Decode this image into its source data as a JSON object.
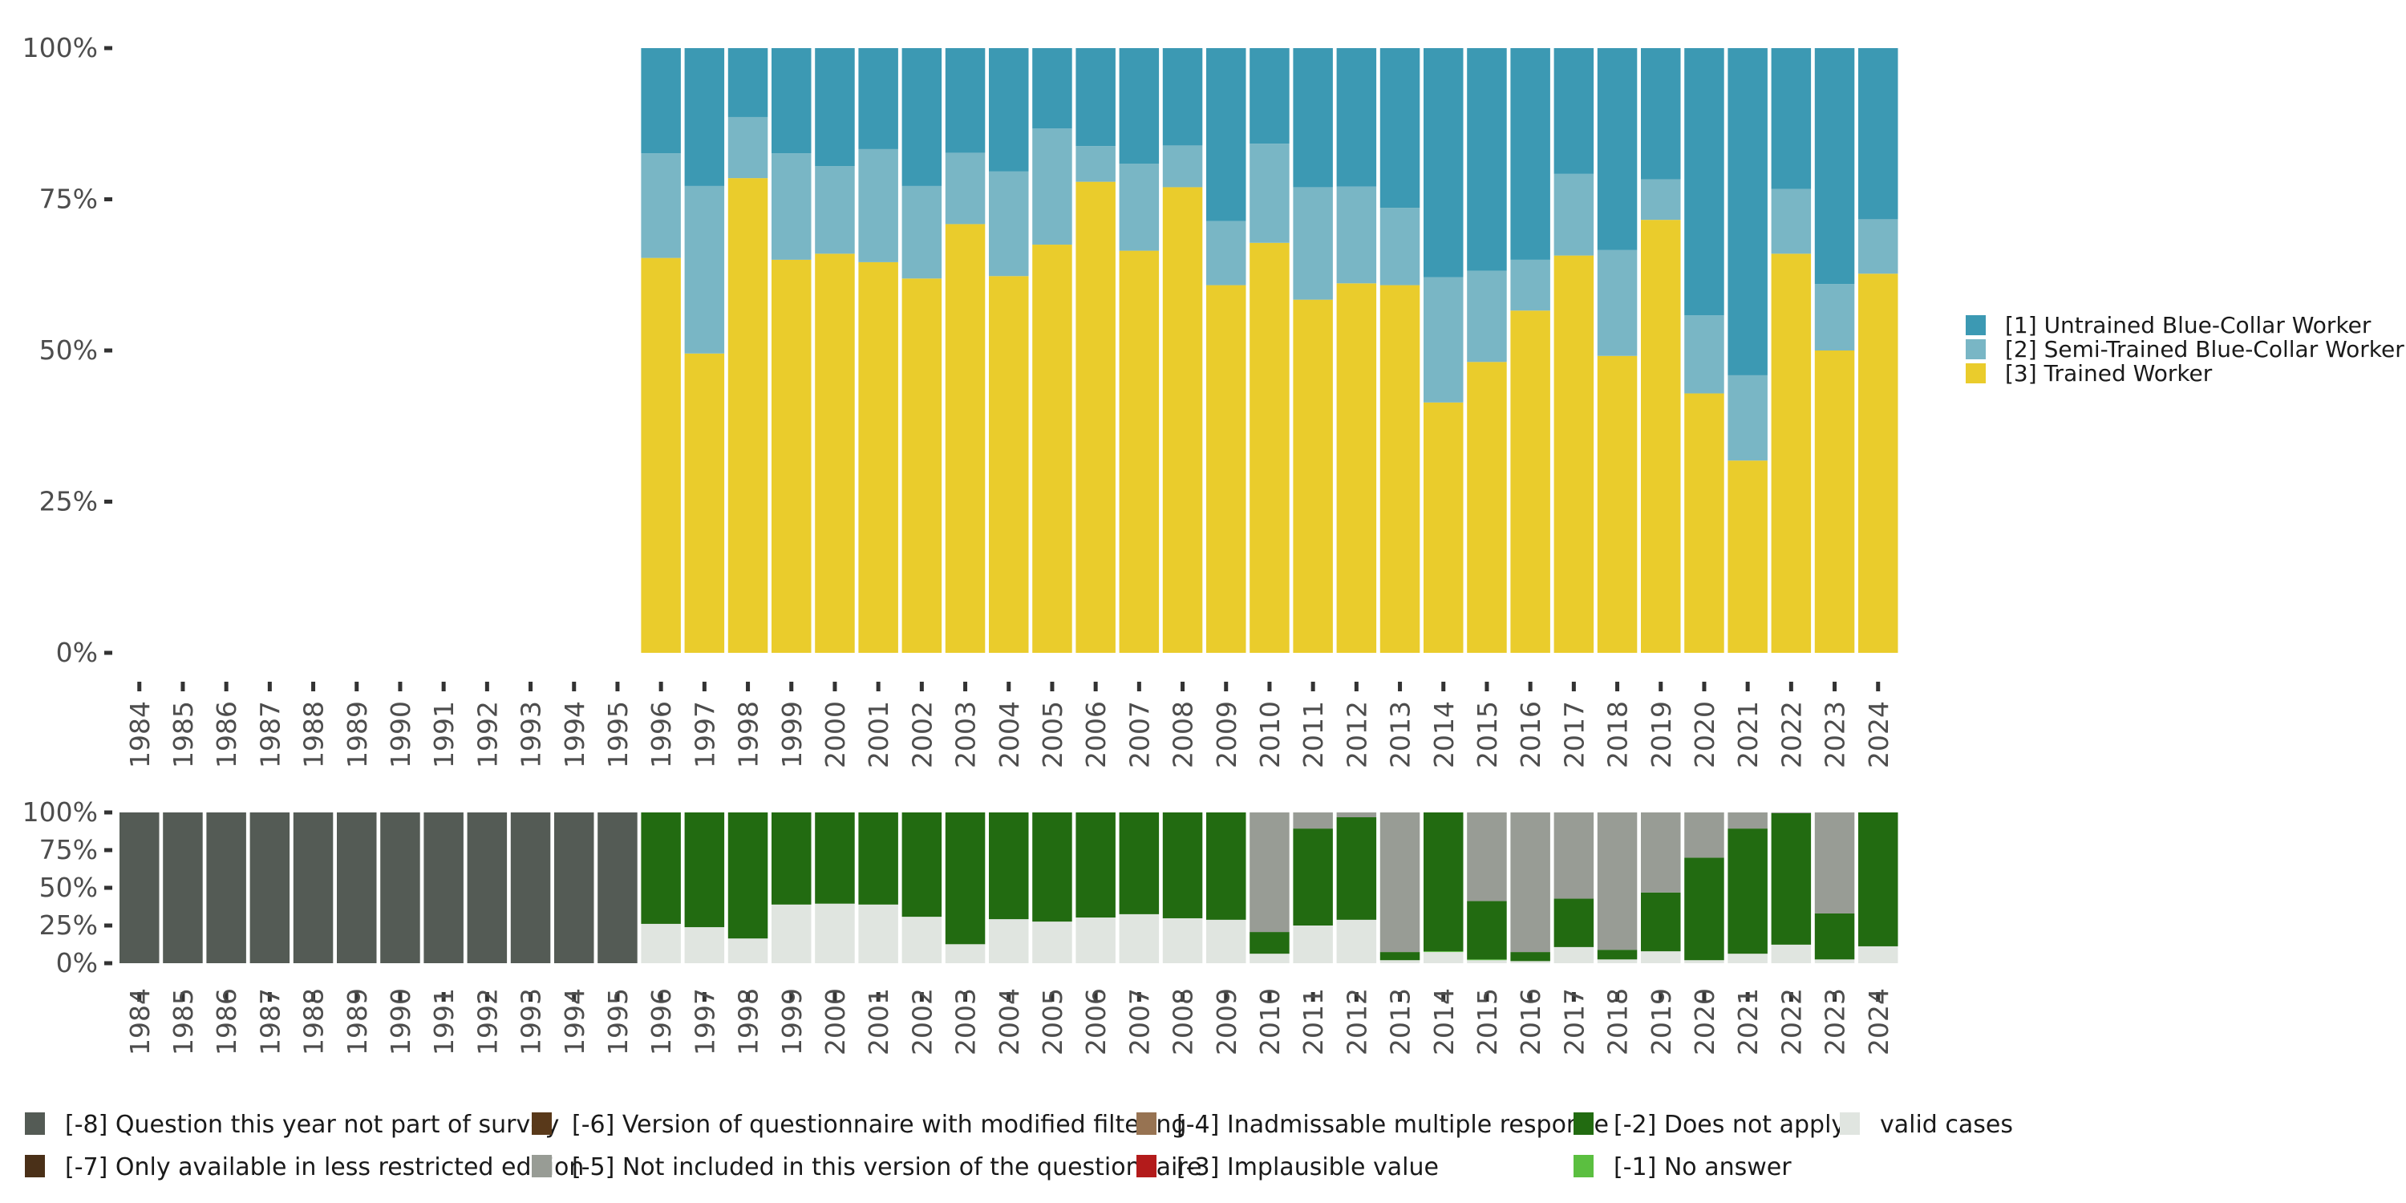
{
  "chart_data": [
    {
      "type": "bar",
      "stacked": true,
      "normalized": true,
      "title": "",
      "xlabel": "",
      "ylabel": "",
      "ylim": [
        0,
        100
      ],
      "y_ticks": [
        "0%",
        "25%",
        "50%",
        "75%",
        "100%"
      ],
      "categories": [
        "1984",
        "1985",
        "1986",
        "1987",
        "1988",
        "1989",
        "1990",
        "1991",
        "1992",
        "1993",
        "1994",
        "1995",
        "1996",
        "1997",
        "1998",
        "1999",
        "2000",
        "2001",
        "2002",
        "2003",
        "2004",
        "2005",
        "2006",
        "2007",
        "2008",
        "2009",
        "2010",
        "2011",
        "2012",
        "2013",
        "2014",
        "2015",
        "2016",
        "2017",
        "2018",
        "2019",
        "2020",
        "2021",
        "2022",
        "2023",
        "2024"
      ],
      "legend_position": "right",
      "series": [
        {
          "name": "[3] Trained Worker",
          "color": "#EACC2C",
          "values": [
            null,
            null,
            null,
            null,
            null,
            null,
            null,
            null,
            null,
            null,
            null,
            null,
            65.3,
            49.5,
            78.5,
            65.0,
            66.0,
            64.6,
            61.9,
            70.9,
            62.3,
            67.5,
            77.9,
            66.5,
            77.0,
            60.8,
            67.8,
            58.4,
            61.1,
            60.8,
            41.4,
            48.1,
            56.6,
            65.7,
            49.1,
            71.6,
            42.9,
            31.8,
            66.0,
            50.0,
            62.7
          ]
        },
        {
          "name": "[2] Semi-Trained Blue-Collar Worker",
          "color": "#79B6C5",
          "values": [
            null,
            null,
            null,
            null,
            null,
            null,
            null,
            null,
            null,
            null,
            null,
            null,
            17.3,
            27.7,
            10.1,
            17.6,
            14.5,
            18.7,
            15.3,
            11.8,
            17.3,
            19.2,
            5.9,
            14.4,
            6.9,
            10.6,
            16.4,
            18.6,
            16.0,
            12.8,
            20.7,
            15.1,
            8.4,
            13.5,
            17.5,
            6.7,
            12.9,
            14.1,
            10.7,
            11.0,
            9.0
          ]
        },
        {
          "name": "[1] Untrained Blue-Collar Worker",
          "color": "#3C99B3",
          "values": [
            null,
            null,
            null,
            null,
            null,
            null,
            null,
            null,
            null,
            null,
            null,
            null,
            17.4,
            22.8,
            11.4,
            17.4,
            19.5,
            16.7,
            22.8,
            17.3,
            20.4,
            13.3,
            16.2,
            19.1,
            16.1,
            28.6,
            15.8,
            23.0,
            22.9,
            26.4,
            37.9,
            36.8,
            35.0,
            20.8,
            33.4,
            21.7,
            44.2,
            54.1,
            23.3,
            39.0,
            28.3
          ]
        }
      ]
    },
    {
      "type": "bar",
      "stacked": true,
      "normalized": true,
      "title": "",
      "xlabel": "",
      "ylabel": "",
      "ylim": [
        0,
        100
      ],
      "y_ticks": [
        "0%",
        "25%",
        "50%",
        "75%",
        "100%"
      ],
      "categories": [
        "1984",
        "1985",
        "1986",
        "1987",
        "1988",
        "1989",
        "1990",
        "1991",
        "1992",
        "1993",
        "1994",
        "1995",
        "1996",
        "1997",
        "1998",
        "1999",
        "2000",
        "2001",
        "2002",
        "2003",
        "2004",
        "2005",
        "2006",
        "2007",
        "2008",
        "2009",
        "2010",
        "2011",
        "2012",
        "2013",
        "2014",
        "2015",
        "2016",
        "2017",
        "2018",
        "2019",
        "2020",
        "2021",
        "2022",
        "2023",
        "2024"
      ],
      "legend_position": "bottom",
      "series": [
        {
          "name": "valid cases",
          "color": "#E0E5E0",
          "values": [
            0,
            0,
            0,
            0,
            0,
            0,
            0,
            0,
            0,
            0,
            0,
            0,
            26.1,
            23.9,
            16.4,
            38.9,
            39.5,
            38.9,
            30.8,
            12.6,
            29.2,
            27.6,
            30.3,
            32.5,
            29.8,
            28.8,
            6.3,
            25.0,
            28.8,
            2.0,
            7.4,
            2.0,
            1.4,
            10.7,
            2.5,
            7.9,
            2.0,
            6.3,
            12.3,
            2.5,
            11.2
          ]
        },
        {
          "name": "[-1] No answer",
          "color": "#5BBF40",
          "values": [
            0,
            0,
            0,
            0,
            0,
            0,
            0,
            0,
            0,
            0,
            0,
            0,
            0,
            0,
            0,
            0,
            0,
            0,
            0,
            0,
            0,
            0,
            0,
            0,
            0,
            0,
            0,
            0,
            0,
            0,
            0.5,
            0.5,
            0,
            0,
            0,
            0,
            0,
            0,
            0,
            0,
            0
          ]
        },
        {
          "name": "[-2] Does not apply",
          "color": "#226B11",
          "values": [
            0,
            0,
            0,
            0,
            0,
            0,
            0,
            0,
            0,
            0,
            0,
            0,
            73.9,
            76.1,
            83.6,
            61.1,
            60.5,
            61.1,
            69.2,
            87.4,
            70.8,
            72.4,
            69.7,
            67.5,
            70.2,
            71.2,
            14.4,
            64.3,
            68.0,
            5.4,
            92.1,
            38.7,
            6.0,
            32.1,
            6.4,
            39.0,
            68.0,
            83.0,
            87.2,
            30.5,
            88.8
          ]
        },
        {
          "name": "[-3] Implausible value",
          "color": "#B31B1B",
          "values": [
            0,
            0,
            0,
            0,
            0,
            0,
            0,
            0,
            0,
            0,
            0,
            0,
            0,
            0,
            0,
            0,
            0,
            0,
            0,
            0,
            0,
            0,
            0,
            0,
            0,
            0,
            0,
            0,
            0,
            0,
            0,
            0,
            0,
            0,
            0,
            0,
            0,
            0,
            0,
            0,
            0
          ]
        },
        {
          "name": "[-4] Inadmissable multiple response",
          "color": "#977352",
          "values": [
            0,
            0,
            0,
            0,
            0,
            0,
            0,
            0,
            0,
            0,
            0,
            0,
            0,
            0,
            0,
            0,
            0,
            0,
            0,
            0,
            0,
            0,
            0,
            0,
            0,
            0,
            0,
            0,
            0,
            0,
            0,
            0,
            0,
            0,
            0,
            0,
            0,
            0,
            0,
            0,
            0
          ]
        },
        {
          "name": "[-5] Not included in this version of the questionnaire",
          "color": "#989C95",
          "values": [
            0,
            0,
            0,
            0,
            0,
            0,
            0,
            0,
            0,
            0,
            0,
            0,
            0,
            0,
            0,
            0,
            0,
            0,
            0,
            0,
            0,
            0,
            0,
            0,
            0,
            0,
            79.3,
            10.7,
            3.2,
            92.6,
            0,
            58.8,
            92.6,
            57.2,
            91.1,
            53.1,
            30.0,
            10.7,
            0.5,
            67.0,
            0
          ]
        },
        {
          "name": "[-6] Version of questionnaire with modified filtering",
          "color": "#59391A",
          "values": [
            0,
            0,
            0,
            0,
            0,
            0,
            0,
            0,
            0,
            0,
            0,
            0,
            0,
            0,
            0,
            0,
            0,
            0,
            0,
            0,
            0,
            0,
            0,
            0,
            0,
            0,
            0,
            0,
            0,
            0,
            0,
            0,
            0,
            0,
            0,
            0,
            0,
            0,
            0,
            0,
            0
          ]
        },
        {
          "name": "[-7] Only available in less restricted edition",
          "color": "#4A3018",
          "values": [
            0,
            0,
            0,
            0,
            0,
            0,
            0,
            0,
            0,
            0,
            0,
            0,
            0,
            0,
            0,
            0,
            0,
            0,
            0,
            0,
            0,
            0,
            0,
            0,
            0,
            0,
            0,
            0,
            0,
            0,
            0,
            0,
            0,
            0,
            0,
            0,
            0,
            0,
            0,
            0,
            0
          ]
        },
        {
          "name": "[-8] Question this year not part of survey",
          "color": "#545B55",
          "values": [
            100,
            100,
            100,
            100,
            100,
            100,
            100,
            100,
            100,
            100,
            100,
            100,
            0,
            0,
            0,
            0,
            0,
            0,
            0,
            0,
            0,
            0,
            0,
            0,
            0,
            0,
            0,
            0,
            0,
            0,
            0,
            0,
            0,
            0,
            0,
            0,
            0,
            0,
            0,
            0,
            0
          ]
        }
      ]
    }
  ],
  "bottom_legend": {
    "columns": [
      [
        {
          "label": "[-8] Question this year not part of survey",
          "color": "#545B55"
        },
        {
          "label": "[-7] Only available in less restricted edition",
          "color": "#4A3018"
        }
      ],
      [
        {
          "label": "[-6] Version of questionnaire with modified filtering",
          "color": "#59391A"
        },
        {
          "label": "[-5] Not included in this version of the questionnaire",
          "color": "#989C95"
        }
      ],
      [
        {
          "label": "[-4] Inadmissable multiple response",
          "color": "#977352"
        },
        {
          "label": "[-3] Implausible value",
          "color": "#B31B1B"
        }
      ],
      [
        {
          "label": "[-2] Does not apply",
          "color": "#226B11"
        },
        {
          "label": "[-1] No answer",
          "color": "#5BBF40"
        }
      ],
      [
        {
          "label": "valid cases",
          "color": "#E0E5E0"
        }
      ]
    ]
  },
  "right_legend": [
    {
      "label": "[1] Untrained Blue-Collar Worker",
      "color": "#3C99B3"
    },
    {
      "label": "[2] Semi-Trained Blue-Collar Worker",
      "color": "#79B6C5"
    },
    {
      "label": "[3] Trained Worker",
      "color": "#EACC2C"
    }
  ]
}
